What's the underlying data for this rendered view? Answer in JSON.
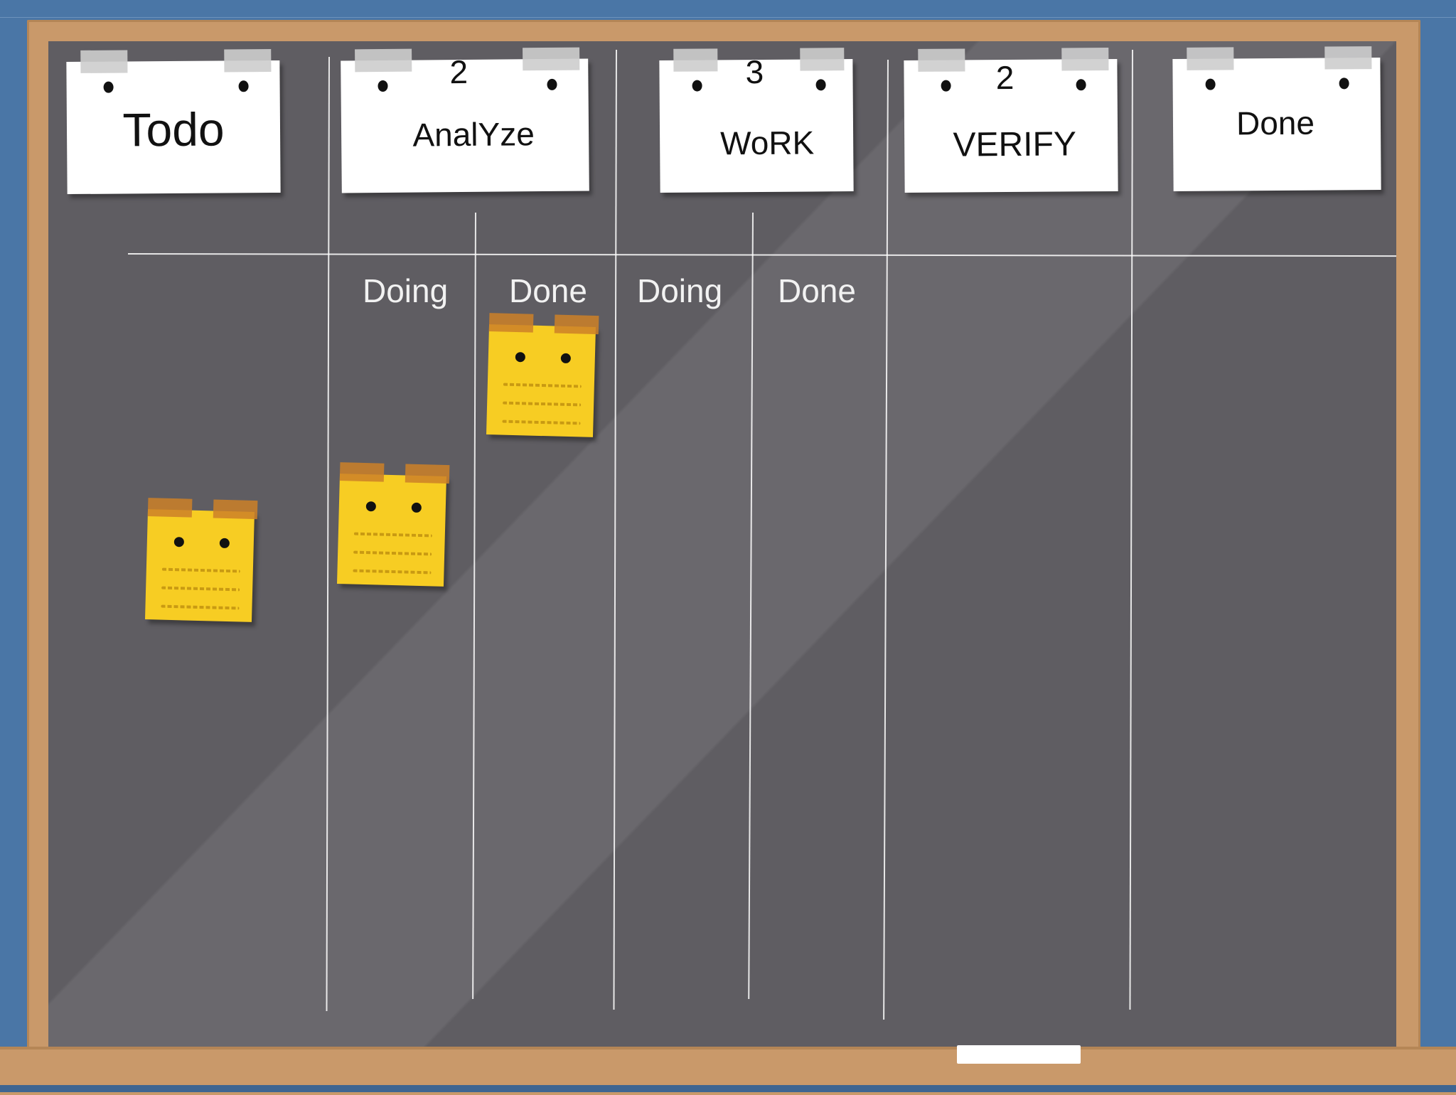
{
  "board": {
    "columns": [
      {
        "title": "Todo",
        "wip_limit": ""
      },
      {
        "title": "AnalYze",
        "wip_limit": "2"
      },
      {
        "title": "WoRK",
        "wip_limit": "3"
      },
      {
        "title": "VERIFY",
        "wip_limit": "2"
      },
      {
        "title": "Done",
        "wip_limit": ""
      }
    ],
    "sub_columns": {
      "analyze_doing": "Doing",
      "analyze_done": "Done",
      "work_doing": "Doing",
      "work_done": "Done"
    }
  },
  "colors": {
    "chalkboard": "#5f5d62",
    "frame": "#c9996a",
    "wall": "#4a76a6",
    "sticky_note": "#f7cd23",
    "card": "#ffffff"
  }
}
